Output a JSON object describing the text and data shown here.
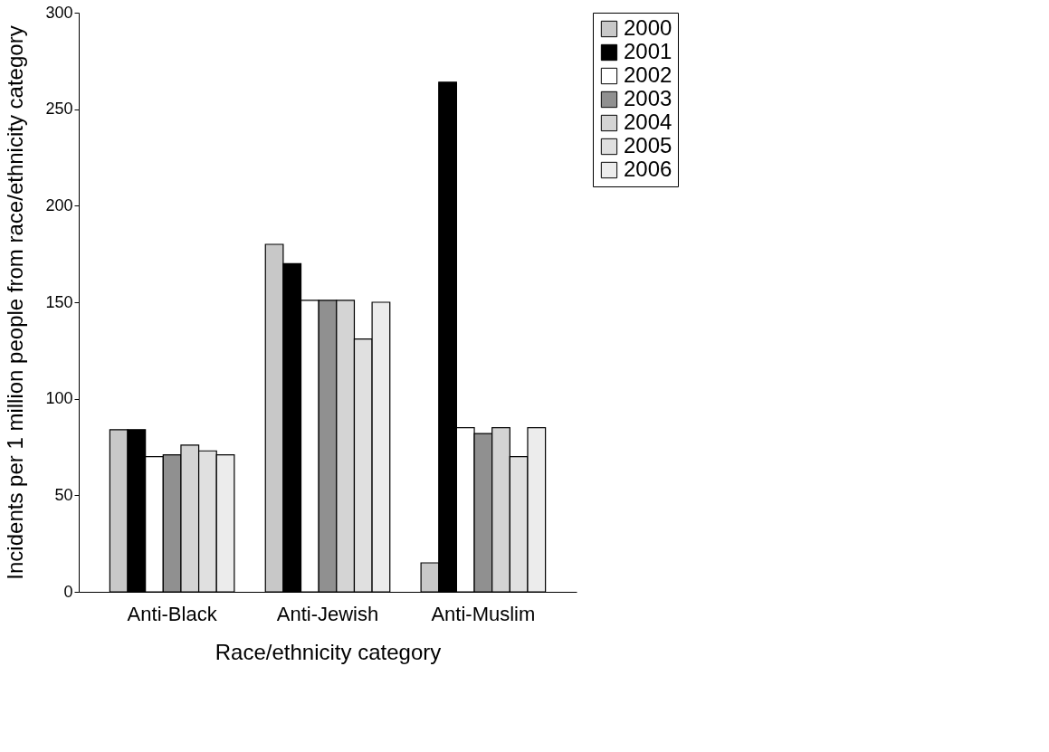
{
  "chart_data": {
    "type": "bar",
    "xlabel": "Race/ethnicity category",
    "ylabel": "Incidents per 1 million people from race/ethnicity category",
    "categories": [
      "Anti-Black",
      "Anti-Jewish",
      "Anti-Muslim"
    ],
    "series": [
      {
        "name": "2000",
        "color": "#c8c8c8",
        "values": [
          84,
          180,
          15
        ]
      },
      {
        "name": "2001",
        "color": "#000000",
        "values": [
          84,
          170,
          264
        ]
      },
      {
        "name": "2002",
        "color": "#ffffff",
        "values": [
          70,
          151,
          85
        ]
      },
      {
        "name": "2003",
        "color": "#909090",
        "values": [
          71,
          151,
          82
        ]
      },
      {
        "name": "2004",
        "color": "#d4d4d4",
        "values": [
          76,
          151,
          85
        ]
      },
      {
        "name": "2005",
        "color": "#e0e0e0",
        "values": [
          73,
          131,
          70
        ]
      },
      {
        "name": "2006",
        "color": "#ececec",
        "values": [
          71,
          150,
          85
        ]
      }
    ],
    "ylim": [
      0,
      300
    ],
    "yticks": [
      0,
      50,
      100,
      150,
      200,
      250,
      300
    ],
    "grid": false,
    "legend": "right"
  }
}
